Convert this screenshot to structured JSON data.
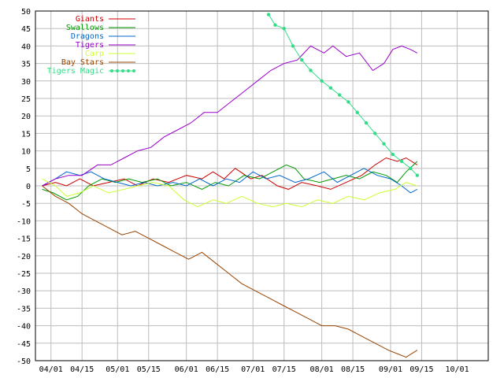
{
  "chart_data": {
    "type": "line",
    "title": "",
    "xlabel": "",
    "ylabel": "",
    "ylim": [
      -50,
      50
    ],
    "xlim": [
      "2003-03-25",
      "2003-10-15"
    ],
    "grid": true,
    "legend_position": "top-left",
    "yticks": [
      -50,
      -45,
      -40,
      -35,
      -30,
      -25,
      -20,
      -15,
      -10,
      -5,
      0,
      5,
      10,
      15,
      20,
      25,
      30,
      35,
      40,
      45,
      50
    ],
    "xticks": [
      {
        "date": "2003-04-01",
        "label": "04/01"
      },
      {
        "date": "2003-04-15",
        "label": "04/15"
      },
      {
        "date": "2003-05-01",
        "label": "05/01"
      },
      {
        "date": "2003-05-15",
        "label": "05/15"
      },
      {
        "date": "2003-06-01",
        "label": "06/01"
      },
      {
        "date": "2003-06-15",
        "label": "06/15"
      },
      {
        "date": "2003-07-01",
        "label": "07/01"
      },
      {
        "date": "2003-07-15",
        "label": "07/15"
      },
      {
        "date": "2003-08-01",
        "label": "08/01"
      },
      {
        "date": "2003-08-15",
        "label": "08/15"
      },
      {
        "date": "2003-09-01",
        "label": "09/01"
      },
      {
        "date": "2003-09-15",
        "label": "09/15"
      },
      {
        "date": "2003-10-01",
        "label": "10/01"
      }
    ],
    "series": [
      {
        "name": "Giants",
        "color": "#cc0000",
        "marker": false,
        "points": [
          [
            "2003-03-28",
            0
          ],
          [
            "2003-04-03",
            1
          ],
          [
            "2003-04-08",
            0
          ],
          [
            "2003-04-14",
            2
          ],
          [
            "2003-04-20",
            0
          ],
          [
            "2003-04-27",
            1
          ],
          [
            "2003-05-04",
            2
          ],
          [
            "2003-05-10",
            0
          ],
          [
            "2003-05-17",
            2
          ],
          [
            "2003-05-24",
            1
          ],
          [
            "2003-06-01",
            3
          ],
          [
            "2003-06-08",
            2
          ],
          [
            "2003-06-13",
            4
          ],
          [
            "2003-06-18",
            2
          ],
          [
            "2003-06-23",
            5
          ],
          [
            "2003-06-30",
            2
          ],
          [
            "2003-07-05",
            3
          ],
          [
            "2003-07-12",
            0
          ],
          [
            "2003-07-17",
            -1
          ],
          [
            "2003-07-23",
            1
          ],
          [
            "2003-07-30",
            0
          ],
          [
            "2003-08-05",
            -1
          ],
          [
            "2003-08-12",
            1
          ],
          [
            "2003-08-19",
            3
          ],
          [
            "2003-08-25",
            6
          ],
          [
            "2003-08-30",
            8
          ],
          [
            "2003-09-04",
            7
          ],
          [
            "2003-09-08",
            8
          ],
          [
            "2003-09-13",
            6
          ]
        ]
      },
      {
        "name": "Swallows",
        "color": "#009900",
        "marker": false,
        "points": [
          [
            "2003-03-28",
            -1
          ],
          [
            "2003-04-02",
            -2
          ],
          [
            "2003-04-08",
            -4
          ],
          [
            "2003-04-13",
            -3
          ],
          [
            "2003-04-18",
            0
          ],
          [
            "2003-04-24",
            2
          ],
          [
            "2003-04-30",
            1
          ],
          [
            "2003-05-06",
            2
          ],
          [
            "2003-05-12",
            1
          ],
          [
            "2003-05-19",
            2
          ],
          [
            "2003-05-25",
            0
          ],
          [
            "2003-06-01",
            1
          ],
          [
            "2003-06-08",
            -1
          ],
          [
            "2003-06-14",
            1
          ],
          [
            "2003-06-20",
            0
          ],
          [
            "2003-06-27",
            3
          ],
          [
            "2003-07-04",
            2
          ],
          [
            "2003-07-10",
            4
          ],
          [
            "2003-07-16",
            6
          ],
          [
            "2003-07-20",
            5
          ],
          [
            "2003-07-24",
            2
          ],
          [
            "2003-07-31",
            1
          ],
          [
            "2003-08-06",
            2
          ],
          [
            "2003-08-12",
            3
          ],
          [
            "2003-08-18",
            2
          ],
          [
            "2003-08-24",
            4
          ],
          [
            "2003-08-30",
            3
          ],
          [
            "2003-09-04",
            1
          ],
          [
            "2003-09-08",
            4
          ],
          [
            "2003-09-13",
            7
          ]
        ]
      },
      {
        "name": "Dragons",
        "color": "#0066cc",
        "marker": false,
        "points": [
          [
            "2003-03-28",
            0
          ],
          [
            "2003-04-03",
            2
          ],
          [
            "2003-04-08",
            4
          ],
          [
            "2003-04-14",
            3
          ],
          [
            "2003-04-19",
            4
          ],
          [
            "2003-04-25",
            2
          ],
          [
            "2003-05-01",
            1
          ],
          [
            "2003-05-07",
            0
          ],
          [
            "2003-05-13",
            1
          ],
          [
            "2003-05-19",
            0
          ],
          [
            "2003-05-26",
            1
          ],
          [
            "2003-06-01",
            0
          ],
          [
            "2003-06-07",
            2
          ],
          [
            "2003-06-13",
            0
          ],
          [
            "2003-06-19",
            2
          ],
          [
            "2003-06-25",
            1
          ],
          [
            "2003-07-01",
            4
          ],
          [
            "2003-07-07",
            2
          ],
          [
            "2003-07-13",
            3
          ],
          [
            "2003-07-20",
            1
          ],
          [
            "2003-07-26",
            2
          ],
          [
            "2003-08-02",
            4
          ],
          [
            "2003-08-08",
            1
          ],
          [
            "2003-08-14",
            3
          ],
          [
            "2003-08-20",
            5
          ],
          [
            "2003-08-26",
            3
          ],
          [
            "2003-09-01",
            2
          ],
          [
            "2003-09-06",
            0
          ],
          [
            "2003-09-10",
            -2
          ],
          [
            "2003-09-13",
            -1
          ]
        ]
      },
      {
        "name": "Tigers",
        "color": "#9900cc",
        "marker": false,
        "points": [
          [
            "2003-03-28",
            0
          ],
          [
            "2003-04-03",
            2
          ],
          [
            "2003-04-09",
            3
          ],
          [
            "2003-04-15",
            3
          ],
          [
            "2003-04-22",
            6
          ],
          [
            "2003-04-28",
            6
          ],
          [
            "2003-05-04",
            8
          ],
          [
            "2003-05-10",
            10
          ],
          [
            "2003-05-16",
            11
          ],
          [
            "2003-05-22",
            14
          ],
          [
            "2003-05-28",
            16
          ],
          [
            "2003-06-03",
            18
          ],
          [
            "2003-06-09",
            21
          ],
          [
            "2003-06-15",
            21
          ],
          [
            "2003-06-21",
            24
          ],
          [
            "2003-06-27",
            27
          ],
          [
            "2003-07-03",
            30
          ],
          [
            "2003-07-09",
            33
          ],
          [
            "2003-07-15",
            35
          ],
          [
            "2003-07-21",
            36
          ],
          [
            "2003-07-27",
            40
          ],
          [
            "2003-08-02",
            38
          ],
          [
            "2003-08-06",
            40
          ],
          [
            "2003-08-12",
            37
          ],
          [
            "2003-08-18",
            38
          ],
          [
            "2003-08-24",
            33
          ],
          [
            "2003-08-29",
            35
          ],
          [
            "2003-09-02",
            39
          ],
          [
            "2003-09-06",
            40
          ],
          [
            "2003-09-10",
            39
          ],
          [
            "2003-09-13",
            38
          ]
        ]
      },
      {
        "name": "Carp",
        "color": "#ccff33",
        "marker": false,
        "points": [
          [
            "2003-03-28",
            2
          ],
          [
            "2003-04-03",
            0
          ],
          [
            "2003-04-08",
            -3
          ],
          [
            "2003-04-14",
            -2
          ],
          [
            "2003-04-20",
            0
          ],
          [
            "2003-04-27",
            -2
          ],
          [
            "2003-05-04",
            -1
          ],
          [
            "2003-05-10",
            0
          ],
          [
            "2003-05-17",
            1
          ],
          [
            "2003-05-24",
            0
          ],
          [
            "2003-05-31",
            -4
          ],
          [
            "2003-06-06",
            -6
          ],
          [
            "2003-06-13",
            -4
          ],
          [
            "2003-06-19",
            -5
          ],
          [
            "2003-06-26",
            -3
          ],
          [
            "2003-07-03",
            -5
          ],
          [
            "2003-07-10",
            -6
          ],
          [
            "2003-07-16",
            -5
          ],
          [
            "2003-07-23",
            -6
          ],
          [
            "2003-07-30",
            -4
          ],
          [
            "2003-08-06",
            -5
          ],
          [
            "2003-08-13",
            -3
          ],
          [
            "2003-08-20",
            -4
          ],
          [
            "2003-08-27",
            -2
          ],
          [
            "2003-09-03",
            -1
          ],
          [
            "2003-09-08",
            1
          ],
          [
            "2003-09-13",
            0
          ]
        ]
      },
      {
        "name": "Bay Stars",
        "color": "#994400",
        "marker": false,
        "points": [
          [
            "2003-03-28",
            0
          ],
          [
            "2003-04-03",
            -3
          ],
          [
            "2003-04-09",
            -5
          ],
          [
            "2003-04-15",
            -8
          ],
          [
            "2003-04-21",
            -10
          ],
          [
            "2003-04-27",
            -12
          ],
          [
            "2003-05-03",
            -14
          ],
          [
            "2003-05-09",
            -13
          ],
          [
            "2003-05-15",
            -15
          ],
          [
            "2003-05-21",
            -17
          ],
          [
            "2003-05-27",
            -19
          ],
          [
            "2003-06-02",
            -21
          ],
          [
            "2003-06-08",
            -19
          ],
          [
            "2003-06-14",
            -22
          ],
          [
            "2003-06-20",
            -25
          ],
          [
            "2003-06-26",
            -28
          ],
          [
            "2003-07-02",
            -30
          ],
          [
            "2003-07-08",
            -32
          ],
          [
            "2003-07-14",
            -34
          ],
          [
            "2003-07-20",
            -36
          ],
          [
            "2003-07-26",
            -38
          ],
          [
            "2003-08-01",
            -40
          ],
          [
            "2003-08-07",
            -40
          ],
          [
            "2003-08-13",
            -41
          ],
          [
            "2003-08-19",
            -43
          ],
          [
            "2003-08-25",
            -45
          ],
          [
            "2003-08-31",
            -47
          ],
          [
            "2003-09-04",
            -48
          ],
          [
            "2003-09-08",
            -49
          ],
          [
            "2003-09-13",
            -47
          ]
        ]
      },
      {
        "name": "Tigers Magic",
        "color": "#33dd88",
        "marker": true,
        "points": [
          [
            "2003-07-08",
            49
          ],
          [
            "2003-07-11",
            46
          ],
          [
            "2003-07-15",
            45
          ],
          [
            "2003-07-19",
            40
          ],
          [
            "2003-07-23",
            36
          ],
          [
            "2003-07-27",
            33
          ],
          [
            "2003-08-01",
            30
          ],
          [
            "2003-08-05",
            28
          ],
          [
            "2003-08-09",
            26
          ],
          [
            "2003-08-13",
            24
          ],
          [
            "2003-08-17",
            21
          ],
          [
            "2003-08-21",
            18
          ],
          [
            "2003-08-25",
            15
          ],
          [
            "2003-08-29",
            12
          ],
          [
            "2003-09-02",
            9
          ],
          [
            "2003-09-06",
            7
          ],
          [
            "2003-09-10",
            5
          ],
          [
            "2003-09-13",
            3
          ]
        ]
      }
    ]
  }
}
